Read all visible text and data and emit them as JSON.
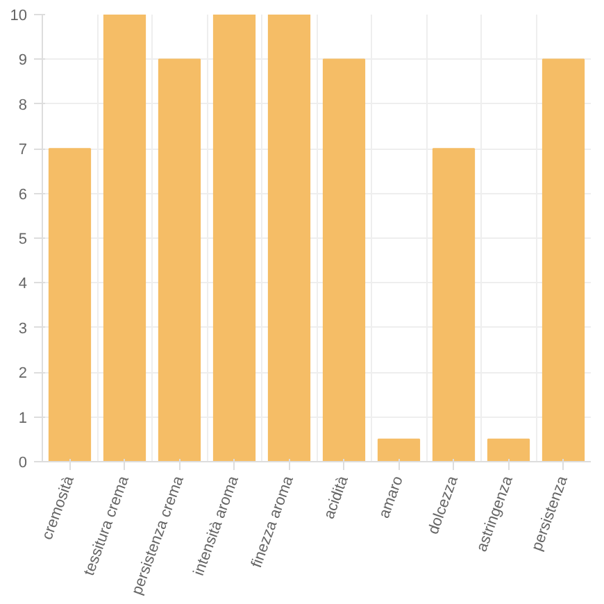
{
  "chart_data": {
    "type": "bar",
    "categories": [
      "cremosità",
      "tessitura crema",
      "persistenza crema",
      "intensità aroma",
      "finezza aroma",
      "acidità",
      "amaro",
      "dolcezza",
      "astringenza",
      "persistenza"
    ],
    "values": [
      7,
      10,
      9,
      10,
      10,
      9,
      0.5,
      7,
      0.5,
      9
    ],
    "color": "#f5bd66",
    "ylim": [
      0,
      10
    ],
    "yticks": [
      0,
      1,
      2,
      3,
      4,
      5,
      6,
      7,
      8,
      9,
      10
    ],
    "grid": true
  }
}
